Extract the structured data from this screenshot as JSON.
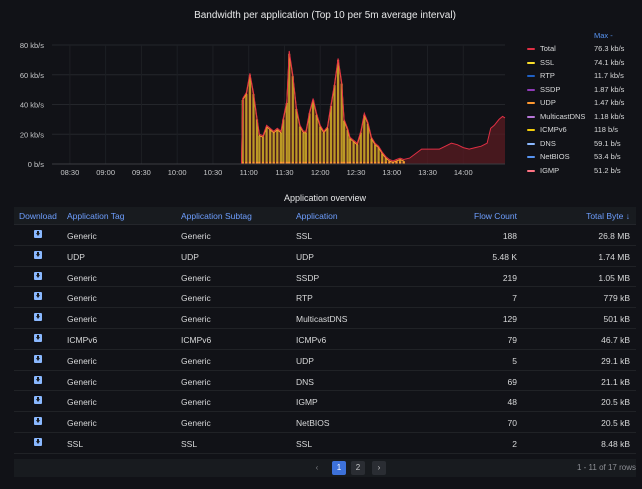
{
  "chart": {
    "title": "Bandwidth per application (Top 10 per 5m average interval)",
    "legend_header": "Max -",
    "legend": [
      {
        "name": "Total",
        "max": "76.3 kb/s",
        "color": "#e02f44"
      },
      {
        "name": "SSL",
        "max": "74.1 kb/s",
        "color": "#fade2a"
      },
      {
        "name": "RTP",
        "max": "11.7 kb/s",
        "color": "#1f60c4"
      },
      {
        "name": "SSDP",
        "max": "1.87 kb/s",
        "color": "#8f3bb8"
      },
      {
        "name": "UDP",
        "max": "1.47 kb/s",
        "color": "#ff9830"
      },
      {
        "name": "MulticastDNS",
        "max": "1.18 kb/s",
        "color": "#b877d9"
      },
      {
        "name": "ICMPv6",
        "max": "118 b/s",
        "color": "#f2cc0c"
      },
      {
        "name": "DNS",
        "max": "59.1 b/s",
        "color": "#8ab8ff"
      },
      {
        "name": "NetBIOS",
        "max": "53.4 b/s",
        "color": "#5794f2"
      },
      {
        "name": "IGMP",
        "max": "51.2 b/s",
        "color": "#ff7383"
      }
    ]
  },
  "chart_data": {
    "type": "area",
    "title": "Bandwidth per application (Top 10 per 5m average interval)",
    "xlabel": "",
    "ylabel": "",
    "y_ticks": [
      "0 b/s",
      "20 kb/s",
      "40 kb/s",
      "60 kb/s",
      "80 kb/s"
    ],
    "ylim": [
      0,
      80
    ],
    "x_ticks": [
      "08:30",
      "09:00",
      "09:30",
      "10:00",
      "10:30",
      "11:00",
      "11:30",
      "12:00",
      "12:30",
      "13:00",
      "13:30",
      "14:00"
    ],
    "xlim_minutes": [
      495,
      875
    ],
    "legend_position": "right",
    "series": [
      {
        "name": "Total",
        "x_minutes": [
          495,
          654,
          655,
          658,
          661,
          664,
          667,
          669,
          672,
          675,
          678,
          681,
          684,
          687,
          689,
          692,
          694,
          697,
          700,
          703,
          706,
          708,
          711,
          714,
          717,
          720,
          723,
          726,
          729,
          732,
          735,
          738,
          740,
          743,
          745,
          748,
          751,
          754,
          757,
          760,
          763,
          766,
          769,
          772,
          775,
          778,
          781,
          784,
          787,
          790,
          795,
          800,
          805,
          810,
          815,
          820,
          825,
          830,
          835,
          840,
          845,
          850,
          855,
          860,
          863,
          866,
          870,
          873,
          875
        ],
        "values": [
          0,
          0,
          44,
          48,
          61,
          48,
          31,
          20,
          19,
          26,
          24,
          22,
          24,
          22,
          31,
          42,
          76,
          60,
          38,
          26,
          22,
          22,
          35,
          44,
          34,
          26,
          22,
          25,
          40,
          54,
          71,
          55,
          30,
          24,
          18,
          16,
          14,
          22,
          34,
          28,
          18,
          14,
          12,
          8,
          5,
          3,
          2,
          3,
          4,
          3,
          4,
          7,
          10,
          10,
          10,
          10,
          12,
          14,
          13,
          11,
          10,
          11,
          12,
          14,
          24,
          26,
          30,
          32,
          31
        ]
      },
      {
        "name": "SSL",
        "x_minutes": [
          654,
          655,
          658,
          661,
          664,
          667,
          669,
          672,
          675,
          678,
          681,
          684,
          687,
          689,
          692,
          694,
          697,
          700,
          703,
          706,
          708,
          711,
          714,
          717,
          720,
          723,
          726,
          729,
          732,
          735,
          738,
          740,
          743,
          745,
          748,
          751,
          754,
          757,
          760,
          763,
          766,
          769,
          772,
          775,
          778,
          781,
          784,
          787,
          790
        ],
        "values": [
          0,
          43,
          47,
          60,
          47,
          30,
          19,
          18,
          25,
          23,
          21,
          23,
          21,
          30,
          41,
          74,
          59,
          37,
          25,
          21,
          21,
          34,
          43,
          33,
          25,
          21,
          24,
          39,
          53,
          70,
          54,
          29,
          23,
          17,
          15,
          13,
          21,
          33,
          27,
          17,
          13,
          11,
          7,
          4,
          2,
          1,
          2,
          3,
          2
        ]
      }
    ]
  },
  "table": {
    "title": "Application overview",
    "headers": {
      "download": "Download",
      "tag": "Application Tag",
      "subtag": "Application Subtag",
      "app": "Application",
      "flow": "Flow Count",
      "bytes": "Total Byte ↓"
    },
    "rows": [
      {
        "tag": "Generic",
        "subtag": "Generic",
        "app": "SSL",
        "flow": "188",
        "bytes": "26.8 MB"
      },
      {
        "tag": "UDP",
        "subtag": "UDP",
        "app": "UDP",
        "flow": "5.48 K",
        "bytes": "1.74 MB"
      },
      {
        "tag": "Generic",
        "subtag": "Generic",
        "app": "SSDP",
        "flow": "219",
        "bytes": "1.05 MB"
      },
      {
        "tag": "Generic",
        "subtag": "Generic",
        "app": "RTP",
        "flow": "7",
        "bytes": "779 kB"
      },
      {
        "tag": "Generic",
        "subtag": "Generic",
        "app": "MulticastDNS",
        "flow": "129",
        "bytes": "501 kB"
      },
      {
        "tag": "ICMPv6",
        "subtag": "ICMPv6",
        "app": "ICMPv6",
        "flow": "79",
        "bytes": "46.7 kB"
      },
      {
        "tag": "Generic",
        "subtag": "Generic",
        "app": "UDP",
        "flow": "5",
        "bytes": "29.1 kB"
      },
      {
        "tag": "Generic",
        "subtag": "Generic",
        "app": "DNS",
        "flow": "69",
        "bytes": "21.1 kB"
      },
      {
        "tag": "Generic",
        "subtag": "Generic",
        "app": "IGMP",
        "flow": "48",
        "bytes": "20.5 kB"
      },
      {
        "tag": "Generic",
        "subtag": "Generic",
        "app": "NetBIOS",
        "flow": "70",
        "bytes": "20.5 kB"
      },
      {
        "tag": "SSL",
        "subtag": "SSL",
        "app": "SSL",
        "flow": "2",
        "bytes": "8.48 kB"
      }
    ]
  },
  "pagination": {
    "prev": "‹",
    "pages": [
      "1",
      "2"
    ],
    "current": "1",
    "next": "›",
    "rows_info": "1 - 11 of 17 rows"
  }
}
